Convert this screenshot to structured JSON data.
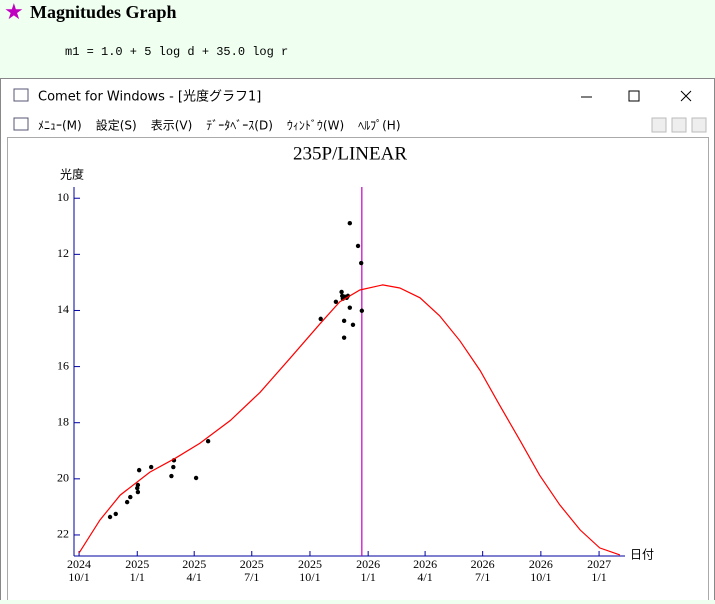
{
  "heading": "Magnitudes Graph",
  "formula": "m1 = 1.0 + 5 log d + 35.0 log r",
  "window": {
    "title": "Comet for Windows - [光度グラフ1]",
    "menu": [
      "ﾒﾆｭｰ(M)",
      "設定(S)",
      "表示(V)",
      "ﾃﾞｰﾀﾍﾞｰｽ(D)",
      "ｳｨﾝﾄﾞｳ(W)",
      "ﾍﾙﾌﾟ(H)"
    ]
  },
  "chart_data": {
    "type": "scatter",
    "title": "235P/LINEAR",
    "ylabel": "光度",
    "xlabel": "日付",
    "ylim": [
      22.75,
      9.6
    ],
    "yticks": [
      10,
      12,
      14,
      16,
      18,
      20,
      22
    ],
    "xlim": [
      "2024-09-23",
      "2027-02-11"
    ],
    "xticks": [
      {
        "value": "2024-10-01",
        "label": "2024\n10/1"
      },
      {
        "value": "2025-01-01",
        "label": "2025\n1/1"
      },
      {
        "value": "2025-04-01",
        "label": "2025\n4/1"
      },
      {
        "value": "2025-07-01",
        "label": "2025\n7/1"
      },
      {
        "value": "2025-10-01",
        "label": "2025\n10/1"
      },
      {
        "value": "2026-01-01",
        "label": "2026\n1/1"
      },
      {
        "value": "2026-04-01",
        "label": "2026\n4/1"
      },
      {
        "value": "2026-07-01",
        "label": "2026\n7/1"
      },
      {
        "value": "2026-10-01",
        "label": "2026\n10/1"
      },
      {
        "value": "2027-01-01",
        "label": "2027\n1/1"
      }
    ],
    "current_date": "2025-12-22",
    "current_color": "#c000c0",
    "axis_color": "#0000a0",
    "series": [
      {
        "type": "scatter",
        "color": "#000000",
        "x": [
          "2024-11-19",
          "2024-11-28",
          "2024-12-16",
          "2024-12-21",
          "2025-01-01",
          "2025-01-02",
          "2025-01-02",
          "2025-01-04",
          "2025-01-23",
          "2025-02-24",
          "2025-02-27",
          "2025-02-28",
          "2025-04-04",
          "2025-04-23",
          "2025-10-18",
          "2025-11-11",
          "2025-11-20",
          "2025-11-21",
          "2025-11-22",
          "2025-11-25",
          "2025-11-28",
          "2025-11-30",
          "2025-11-24",
          "2025-11-24",
          "2025-12-03",
          "2025-12-03",
          "2025-12-08",
          "2025-12-16",
          "2025-12-21",
          "2025-12-22"
        ],
        "values": [
          21.36,
          21.25,
          20.83,
          20.65,
          20.33,
          20.47,
          20.22,
          19.69,
          19.58,
          19.9,
          19.58,
          19.34,
          19.97,
          18.66,
          14.3,
          13.69,
          13.34,
          13.48,
          13.58,
          13.51,
          13.55,
          13.48,
          14.37,
          14.97,
          10.89,
          13.9,
          14.51,
          11.7,
          12.31,
          14.01
        ]
      },
      {
        "type": "line",
        "color": "#ff0000",
        "x": [
          "2024-10-01",
          "2024-11-03",
          "2024-12-05",
          "2025-01-21",
          "2025-03-02",
          "2025-04-10",
          "2025-05-28",
          "2025-07-14",
          "2025-08-30",
          "2025-10-17",
          "2025-11-17",
          "2025-12-19",
          "2026-01-24",
          "2026-02-20",
          "2026-03-24",
          "2026-04-24",
          "2026-05-26",
          "2026-06-27",
          "2026-07-28",
          "2026-08-29",
          "2026-09-29",
          "2026-10-31",
          "2026-12-02",
          "2027-01-02",
          "2027-02-03"
        ],
        "values": [
          22.64,
          21.47,
          20.58,
          19.76,
          19.27,
          18.73,
          17.92,
          16.92,
          15.72,
          14.47,
          13.69,
          13.27,
          13.09,
          13.2,
          13.55,
          14.19,
          15.08,
          16.14,
          17.38,
          18.63,
          19.87,
          20.93,
          21.82,
          22.46,
          22.71
        ]
      }
    ]
  }
}
